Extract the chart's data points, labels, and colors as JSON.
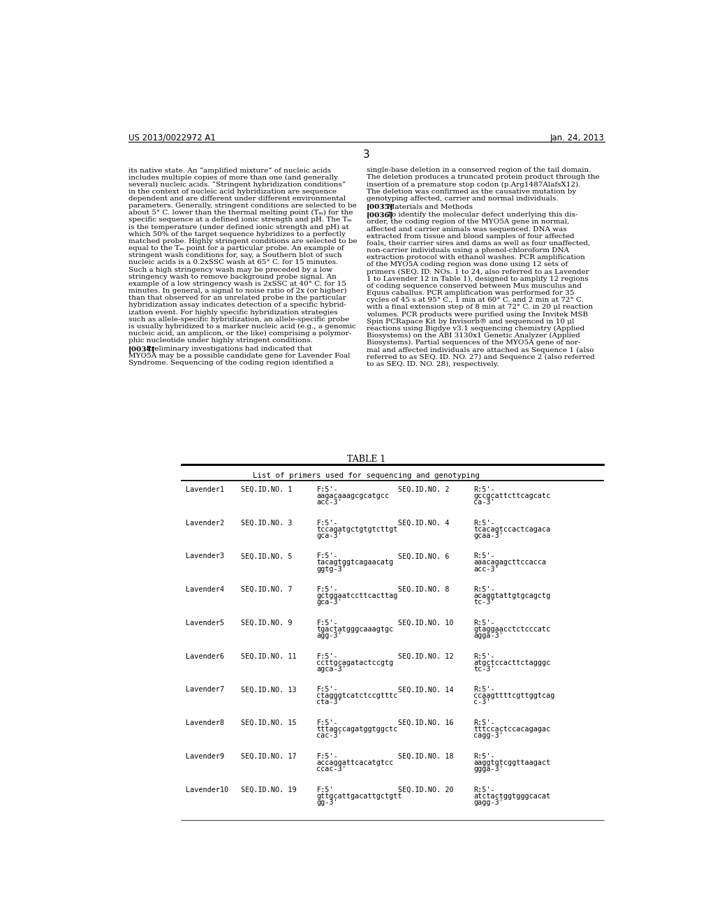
{
  "page_header_left": "US 2013/0022972 A1",
  "page_header_right": "Jan. 24, 2013",
  "page_number": "3",
  "col1_paragraphs": [
    "its native state. An “amplified mixture” of nucleic acids\nincludes multiple copies of more than one (and generally\nseveral) nucleic acids. “Stringent hybridization conditions”\nin the context of nucleic acid hybridization are sequence\ndependent and are different under different environmental\nparameters. Generally, stringent conditions are selected to be\nabout 5° C. lower than the thermal melting point (Tₘ) for the\nspecific sequence at a defined ionic strength and pH. The Tₘ\nis the temperature (under defined ionic strength and pH) at\nwhich 50% of the target sequence hybridizes to a perfectly\nmatched probe. Highly stringent conditions are selected to be\nequal to the Tₘ point for a particular probe. An example of\nstringent wash conditions for, say, a Southern blot of such\nnucleic acids is a 0.2xSSC wash at 65° C. for 15 minutes.\nSuch a high stringency wash may be preceded by a low\nstringency wash to remove background probe signal. An\nexample of a low stringency wash is 2xSSC at 40° C. for 15\nminutes. In general, a signal to noise ratio of 2x (or higher)\nthan that observed for an unrelated probe in the particular\nhybridization assay indicates detection of a specific hybrid-\nization event. For highly specific hybridization strategies\nsuch as allele-specific hybridization, an allele-specific probe\nis usually hybridized to a marker nucleic acid (e.g., a genomic\nnucleic acid, an amplicon, or the like) comprising a polymor-\nphic nucleotide under highly stringent conditions.",
    "[0034]  Preliminary investigations had indicated that\nMYO5A may be a possible candidate gene for Lavender Foal\nSyndrome. Sequencing of the coding region identified a"
  ],
  "col2_paragraphs": [
    "single-base deletion in a conserved region of the tail domain.\nThe deletion produces a truncated protein product through the\ninsertion of a premature stop codon (p.Arg1487AlafsX12).\nThe deletion was confirmed as the causative mutation by\ngenotyping affected, carrier and normal individuals.",
    "[0035]   Materials and Methods",
    "[0036]   To identify the molecular defect underlying this dis-\norder, the coding region of the MYO5A gene in normal,\naffected and carrier animals was sequenced. DNA was\nextracted from tissue and blood samples of four affected\nfoals, their carrier sires and dams as well as four unaffected,\nnon-carrier individuals using a phenol-chloroform DNA\nextraction protocol with ethanol washes. PCR amplification\nof the MYO5A coding region was done using 12 sets of\nprimers (SEQ. ID. NOs. 1 to 24, also referred to as Lavender\n1 to Lavender 12 in Table 1), designed to amplify 12 regions\nof coding sequence conserved between Mus musculus and\nEquus caballus. PCR amplification was performed for 35\ncycles of 45 s at 95° C., 1 min at 60° C. and 2 min at 72° C.\nwith a final extension step of 8 min at 72° C. in 20 μl reaction\nvolumes. PCR products were purified using the Invitek MSB\nSpin PCRapace Kit by Invisorb® and sequenced in 10 μl\nreactions using Bigdye v3.1 sequencing chemistry (Applied\nBiosystems) on the ABI 3130x1 Genetic Analyzer (Applied\nBiosystems). Partial sequences of the MYO5A gene of nor-\nmal and affected individuals are attached as Sequence 1 (also\nreferred to as SEQ. ID. NO. 27) and Sequence 2 (also referred\nto as SEQ. ID. NO. 28), respectively."
  ],
  "table_title": "TABLE 1",
  "table_subtitle": "List of primers used for sequencing and genotyping",
  "table_rows": [
    [
      "Lavender1",
      "SEQ.ID.NO. 1",
      "F:5'-\naagacaaagcgcatgcc\nacc-3'",
      "SEQ.ID.NO. 2",
      "R:5'-\ngccgcattcttcagcatc\nca-3'"
    ],
    [
      "Lavender2",
      "SEQ.ID.NO. 3",
      "F:5'-\ntccagatgctgtgtcttgt\ngca-3'",
      "SEQ.ID.NO. 4",
      "R:5'-\ntcacagtccactcagaca\ngcaa-3'"
    ],
    [
      "Lavender3",
      "SEQ.ID.NO. 5",
      "F:5'-\ntacagtggtcagaacatg\nggtg-3'",
      "SEQ.ID.NO. 6",
      "R:5'-\naaacagagcttccacca\nacc-3'"
    ],
    [
      "Lavender4",
      "SEQ.ID.NO. 7",
      "F:5'-\ngctggaatccttcacttag\ngca-3'",
      "SEQ.ID.NO. 8",
      "R:5'-\nacaggtattgtgcagctg\ntc-3'"
    ],
    [
      "Lavender5",
      "SEQ.ID.NO. 9",
      "F:5'-\ntgactatgggcaaagtgc\nagg-3'",
      "SEQ.ID.NO. 10",
      "R:5'-\ngtaggaacctctcccatc\nagga-3'"
    ],
    [
      "Lavender6",
      "SEQ.ID.NO. 11",
      "F:5'-\nccttgcagatactccgtg\nagca-3'",
      "SEQ.ID.NO. 12",
      "R:5'-\natgctccacttctagggc\ntc-3'"
    ],
    [
      "Lavender7",
      "SEQ.ID.NO. 13",
      "F:5'-\nctagggtcatctccgtttc\ncta-3'",
      "SEQ.ID.NO. 14",
      "R:5'-\nccaagttttcgttggtcag\nc-3'"
    ],
    [
      "Lavender8",
      "SEQ.ID.NO. 15",
      "F:5'-\ntttagccagatggtggctc\ncac-3'",
      "SEQ.ID.NO. 16",
      "R:5'-\ntttccactccacagagac\ncagg-3'"
    ],
    [
      "Lavender9",
      "SEQ.ID.NO. 17",
      "F:5'-\naccaggattcacatgtcc\nccac-3'",
      "SEQ.ID.NO. 18",
      "R:5'-\naaggtgtcggttaagact\nggga-3'"
    ],
    [
      "Lavender10",
      "SEQ.ID.NO. 19",
      "F:5'\ngttgcattgacattgctgtt\ngg-3'",
      "SEQ.ID.NO. 20",
      "R:5'-\natctactggtgggcacat\ngagg-3'"
    ]
  ],
  "background_color": "#ffffff",
  "text_color": "#000000"
}
